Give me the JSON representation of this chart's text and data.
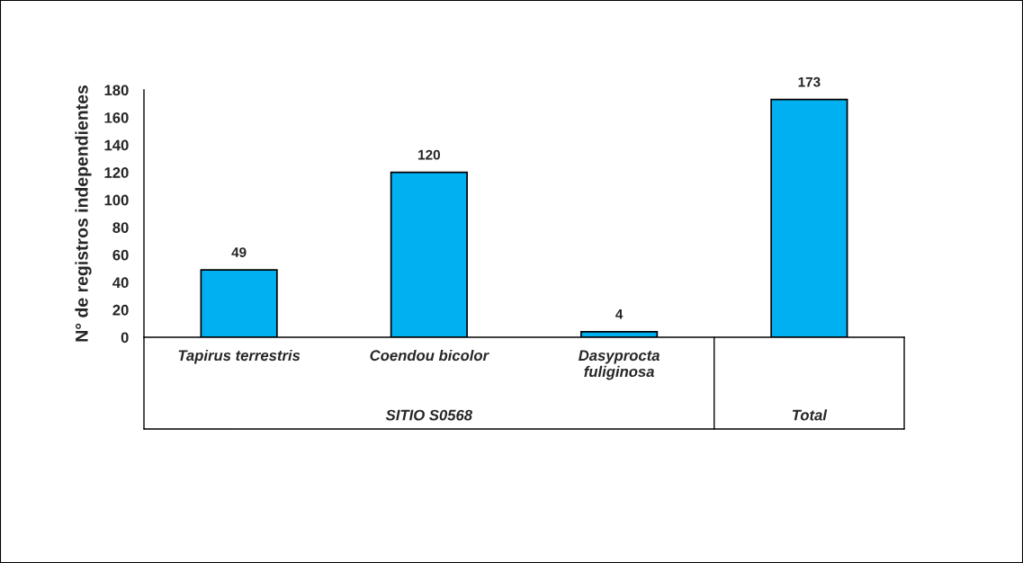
{
  "chart_data": {
    "type": "bar",
    "categories": [
      "Tapirus terrestris",
      "Coendou bicolor",
      "Dasyprocta\nfuliginosa",
      null
    ],
    "values": [
      49,
      120,
      4,
      173
    ],
    "color": "#00b0f0",
    "ylabel": "N° de registros independientes",
    "ylim": [
      0,
      180
    ],
    "yticks": [
      0,
      20,
      40,
      60,
      80,
      100,
      120,
      140,
      160,
      180
    ],
    "data_labels": true,
    "grid": false,
    "annotations": [
      "SITIO S0568",
      "Total"
    ]
  }
}
